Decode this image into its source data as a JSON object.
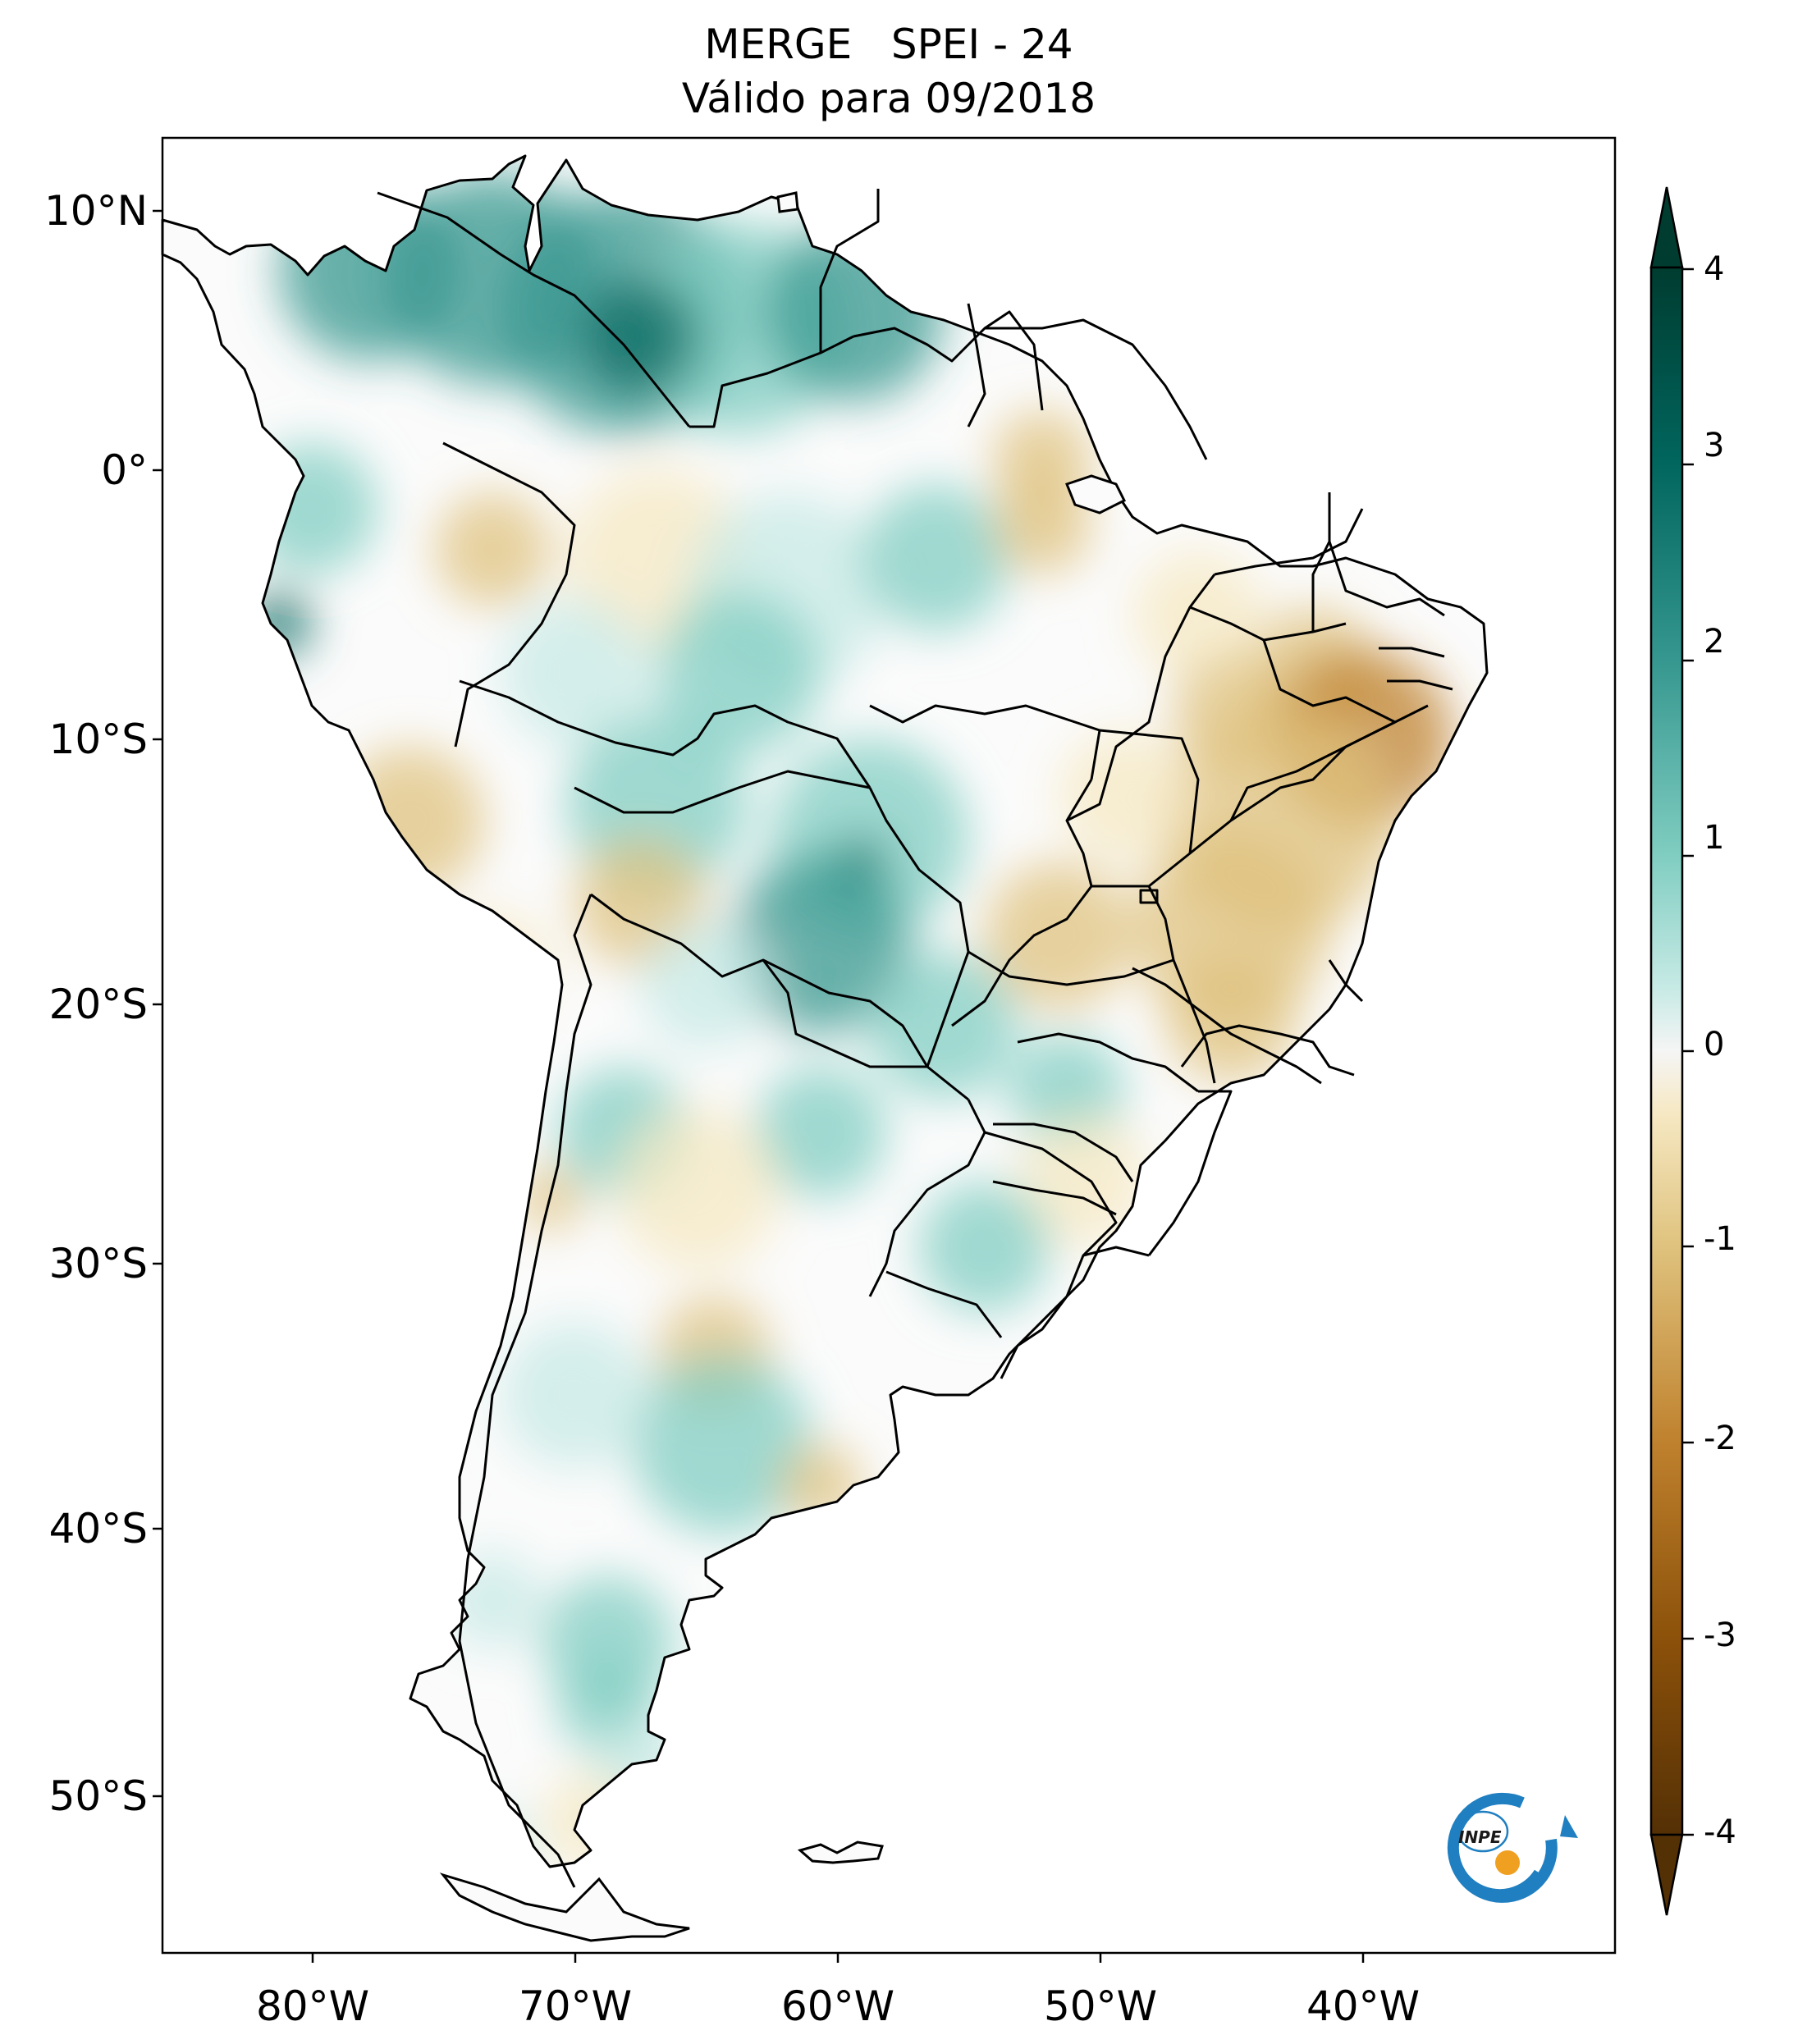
{
  "title": {
    "line1": "MERGE   SPEI - 24",
    "line2": "Válido para 09/2018"
  },
  "axes": {
    "lat_ticks": [
      "10°N",
      "0°",
      "10°S",
      "20°S",
      "30°S",
      "40°S",
      "50°S"
    ],
    "lon_ticks": [
      "80°W",
      "70°W",
      "60°W",
      "50°W",
      "40°W"
    ]
  },
  "colorbar": {
    "ticks": [
      "4",
      "3",
      "2",
      "1",
      "0",
      "-1",
      "-2",
      "-3",
      "-4"
    ],
    "range": [
      -4,
      4
    ],
    "extend": "both",
    "colors": {
      "wet_max": "#003c30",
      "wet_high": "#01665e",
      "wet_mid": "#35978f",
      "wet_low": "#80cdc1",
      "wet_min": "#c7eae5",
      "neutral": "#f5f5f5",
      "dry_min": "#f6e8c3",
      "dry_low": "#dfc27d",
      "dry_mid": "#bf812d",
      "dry_high": "#8c510a",
      "dry_max": "#543005"
    }
  },
  "logo": {
    "text": "INPE",
    "ring_color": "#1f7fc0",
    "dot_color": "#f0a020"
  }
}
